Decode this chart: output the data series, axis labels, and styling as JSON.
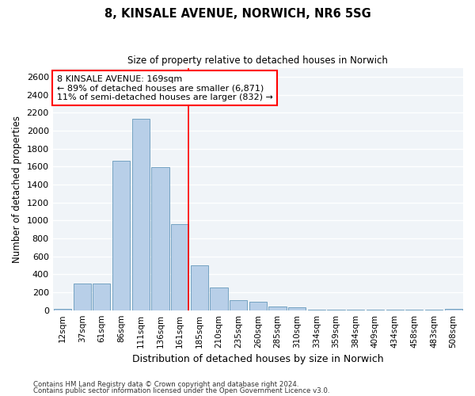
{
  "title": "8, KINSALE AVENUE, NORWICH, NR6 5SG",
  "subtitle": "Size of property relative to detached houses in Norwich",
  "xlabel": "Distribution of detached houses by size in Norwich",
  "ylabel": "Number of detached properties",
  "bar_color": "#b8cfe8",
  "bar_edge_color": "#6699bb",
  "categories": [
    "12sqm",
    "37sqm",
    "61sqm",
    "86sqm",
    "111sqm",
    "136sqm",
    "161sqm",
    "185sqm",
    "210sqm",
    "235sqm",
    "260sqm",
    "285sqm",
    "310sqm",
    "334sqm",
    "359sqm",
    "384sqm",
    "409sqm",
    "434sqm",
    "458sqm",
    "483sqm",
    "508sqm"
  ],
  "values": [
    18,
    300,
    300,
    1660,
    2130,
    1590,
    960,
    500,
    250,
    115,
    95,
    45,
    30,
    5,
    5,
    5,
    5,
    5,
    5,
    5,
    18
  ],
  "ylim": [
    0,
    2700
  ],
  "yticks": [
    0,
    200,
    400,
    600,
    800,
    1000,
    1200,
    1400,
    1600,
    1800,
    2000,
    2200,
    2400,
    2600
  ],
  "annotation_title": "8 KINSALE AVENUE: 169sqm",
  "annotation_line1": "← 89% of detached houses are smaller (6,871)",
  "annotation_line2": "11% of semi-detached houses are larger (832) →",
  "vline_position": 7.0,
  "bg_color": "#f0f4f8",
  "grid_color": "#d8e0e8",
  "footnote1": "Contains HM Land Registry data © Crown copyright and database right 2024.",
  "footnote2": "Contains public sector information licensed under the Open Government Licence v3.0."
}
